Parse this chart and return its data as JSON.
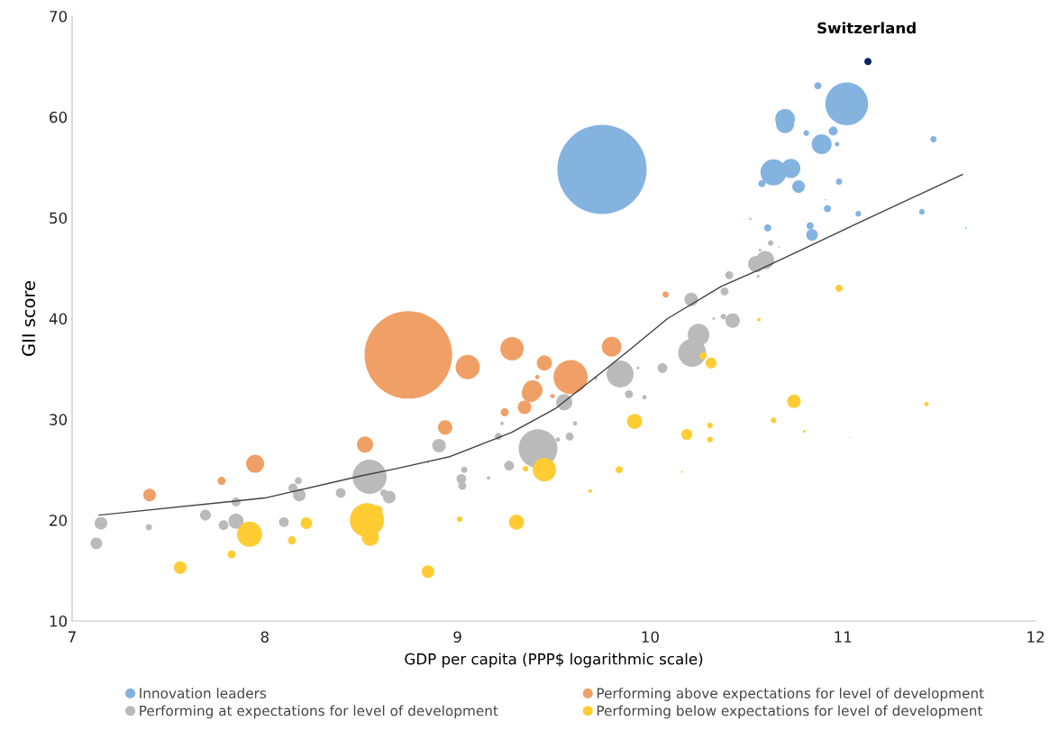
{
  "chart_data": {
    "type": "bubble",
    "xlabel": "GDP per capita (PPP$ logarithmic scale)",
    "ylabel": "GII score",
    "xlim": [
      7,
      12
    ],
    "ylim": [
      10,
      70
    ],
    "xticks": [
      7,
      8,
      9,
      10,
      11,
      12
    ],
    "yticks": [
      10,
      20,
      30,
      40,
      50,
      60,
      70
    ],
    "grid": false,
    "legend": "bottom",
    "marker": "circle",
    "annotations": [
      {
        "text": "Switzerland",
        "x": 11.13,
        "y": 65.5
      }
    ],
    "series": [
      {
        "name": "Innovation leaders",
        "color": "#84b3e0",
        "x": [
          9.75,
          11.02,
          10.7,
          10.7,
          10.87,
          10.89,
          10.95,
          10.97,
          10.81,
          10.64,
          10.73,
          10.77,
          10.58,
          10.98,
          11.47,
          10.52,
          10.92,
          11.08,
          11.41,
          10.61,
          10.83,
          10.84,
          10.91,
          11.64
        ],
        "values": [
          54.8,
          61.3,
          59.8,
          59.3,
          63.1,
          57.3,
          58.6,
          57.3,
          58.4,
          54.5,
          54.9,
          53.1,
          53.4,
          53.6,
          57.8,
          49.9,
          50.9,
          50.4,
          50.6,
          49.0,
          49.2,
          48.3,
          51.8,
          49.0
        ],
        "sizes": [
          1,
          0.229,
          0.049,
          0.041,
          0.0065,
          0.05,
          0.01,
          0.0025,
          0.004,
          0.086,
          0.046,
          0.02,
          0.0065,
          0.005,
          0.005,
          0.0005,
          0.0065,
          0.004,
          0.004,
          0.0065,
          0.0065,
          0.017,
          0.0002,
          0.0003
        ]
      },
      {
        "name": "Performing above expectations for level of development",
        "color": "#f0a066",
        "x": [
          8.745,
          9.053,
          9.283,
          9.451,
          9.587,
          9.8,
          9.39,
          9.38,
          9.348,
          9.245,
          9.414,
          9.493,
          8.936,
          8.52,
          7.95,
          7.776,
          7.402,
          10.08
        ],
        "values": [
          36.4,
          35.2,
          37.0,
          35.6,
          34.2,
          37.2,
          32.9,
          32.6,
          31.2,
          30.7,
          34.2,
          32.3,
          29.2,
          27.5,
          25.6,
          23.9,
          22.5,
          42.4
        ],
        "sizes": [
          0.964,
          0.074,
          0.069,
          0.029,
          0.147,
          0.049,
          0.049,
          0.041,
          0.023,
          0.008,
          0.0025,
          0.0025,
          0.026,
          0.033,
          0.041,
          0.008,
          0.02,
          0.005
        ]
      },
      {
        "name": "Performing at expectations for level of development",
        "color": "#bababa",
        "x": [
          7.15,
          7.126,
          7.398,
          7.692,
          7.786,
          7.851,
          7.851,
          8.099,
          8.146,
          8.174,
          8.179,
          8.394,
          8.544,
          8.618,
          8.646,
          8.904,
          9.212,
          9.231,
          9.035,
          9.02,
          9.025,
          9.161,
          8.847,
          9.268,
          9.418,
          9.521,
          9.582,
          9.61,
          9.554,
          9.844,
          9.89,
          9.97,
          9.937,
          10.064,
          9.717,
          10.218,
          10.251,
          10.213,
          10.428,
          10.38,
          10.33,
          10.386,
          10.41,
          10.56,
          10.55,
          10.597,
          10.625,
          10.57,
          10.67
        ],
        "values": [
          19.7,
          17.7,
          19.3,
          20.5,
          19.5,
          19.9,
          21.8,
          19.8,
          23.2,
          23.9,
          22.5,
          22.7,
          24.3,
          22.7,
          22.3,
          27.4,
          28.3,
          29.6,
          25.0,
          24.1,
          23.4,
          24.2,
          25.7,
          25.4,
          27.1,
          28.0,
          28.3,
          29.6,
          31.7,
          34.5,
          32.5,
          32.2,
          35.1,
          35.1,
          34.1,
          36.6,
          38.4,
          41.9,
          39.8,
          40.2,
          40.0,
          42.7,
          44.3,
          44.2,
          45.4,
          45.8,
          47.5,
          46.8,
          47.1
        ],
        "sizes": [
          0.02,
          0.017,
          0.005,
          0.015,
          0.012,
          0.029,
          0.01,
          0.012,
          0.01,
          0.0065,
          0.02,
          0.012,
          0.147,
          0.0065,
          0.02,
          0.023,
          0.0065,
          0.0016,
          0.005,
          0.012,
          0.008,
          0.0016,
          0.0004,
          0.012,
          0.189,
          0.0025,
          0.008,
          0.0025,
          0.033,
          0.092,
          0.008,
          0.0025,
          0.001,
          0.012,
          0.0016,
          0.098,
          0.059,
          0.023,
          0.026,
          0.004,
          0.001,
          0.008,
          0.008,
          0.001,
          0.033,
          0.041,
          0.004,
          0.001,
          0.0003
        ]
      },
      {
        "name": "Performing below expectations for level of development",
        "color": "#ffcc33",
        "x": [
          7.561,
          7.828,
          7.921,
          8.141,
          8.216,
          8.53,
          8.581,
          8.548,
          8.847,
          9.011,
          9.306,
          9.451,
          9.353,
          9.689,
          9.839,
          9.919,
          10.19,
          10.31,
          10.31,
          10.166,
          10.316,
          10.274,
          10.564,
          10.746,
          10.64,
          10.8,
          11.036,
          11.434,
          10.98
        ],
        "values": [
          15.3,
          16.6,
          18.6,
          18.0,
          19.7,
          20.0,
          20.9,
          18.3,
          14.9,
          20.1,
          19.8,
          25.0,
          25.1,
          22.9,
          25.0,
          29.8,
          28.5,
          28.0,
          29.4,
          24.8,
          35.6,
          36.3,
          39.9,
          31.8,
          29.9,
          28.8,
          28.2,
          31.5,
          43.0
        ],
        "sizes": [
          0.02,
          0.008,
          0.08,
          0.008,
          0.017,
          0.147,
          0.017,
          0.037,
          0.02,
          0.004,
          0.029,
          0.069,
          0.004,
          0.0016,
          0.0065,
          0.029,
          0.015,
          0.004,
          0.004,
          0.0005,
          0.015,
          0.0065,
          0.0016,
          0.023,
          0.004,
          0.001,
          0.0002,
          0.0025,
          0.0065
        ]
      },
      {
        "color": "#0b2563",
        "x": [
          11.13
        ],
        "values": [
          65.5
        ],
        "sizes": [
          0.0065
        ]
      },
      {
        "type": "line",
        "color": "#404040",
        "line_style": "solid",
        "marker": "none",
        "x": [
          7.14,
          8.0,
          8.5,
          8.68,
          8.96,
          9.28,
          9.51,
          9.75,
          9.9,
          10.09,
          10.37,
          10.56,
          11.06,
          11.62
        ],
        "values": [
          20.5,
          22.2,
          24.4,
          25.1,
          26.3,
          28.7,
          31.1,
          34.7,
          37.0,
          40.0,
          43.2,
          44.8,
          49.3,
          54.3
        ]
      }
    ]
  }
}
